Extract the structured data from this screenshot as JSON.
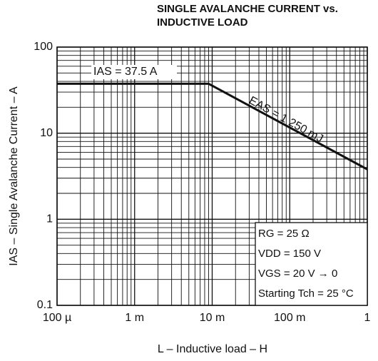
{
  "chart_data": {
    "type": "line",
    "title": [
      "SINGLE AVALANCHE CURRENT vs.",
      "INDUCTIVE LOAD"
    ],
    "xlabel": "L – Inductive load – H",
    "ylabel": "IAS – Single Avalanche Current – A",
    "xscale": "log",
    "yscale": "log",
    "xlim": [
      0.0001,
      1
    ],
    "ylim": [
      0.1,
      100
    ],
    "xticks": [
      {
        "value": 0.0001,
        "label": "100 µ"
      },
      {
        "value": 0.001,
        "label": "1 m"
      },
      {
        "value": 0.01,
        "label": "10 m"
      },
      {
        "value": 0.1,
        "label": "100 m"
      },
      1
    ],
    "yticks": [
      0.1,
      1,
      10,
      100
    ],
    "grid": true,
    "minor_grid": true,
    "series": [
      {
        "color": "#111111",
        "x": [
          0.0001,
          0.009,
          1
        ],
        "values": [
          37.5,
          37.5,
          3.8
        ]
      }
    ],
    "annotations": [
      "IAS = 37.5 A",
      "EAS = 1 250 mJ"
    ],
    "conditions": [
      "RG = 25 Ω",
      "VDD = 150 V",
      "VGS = 20 V → 0",
      "Starting Tch = 25 °C"
    ]
  }
}
